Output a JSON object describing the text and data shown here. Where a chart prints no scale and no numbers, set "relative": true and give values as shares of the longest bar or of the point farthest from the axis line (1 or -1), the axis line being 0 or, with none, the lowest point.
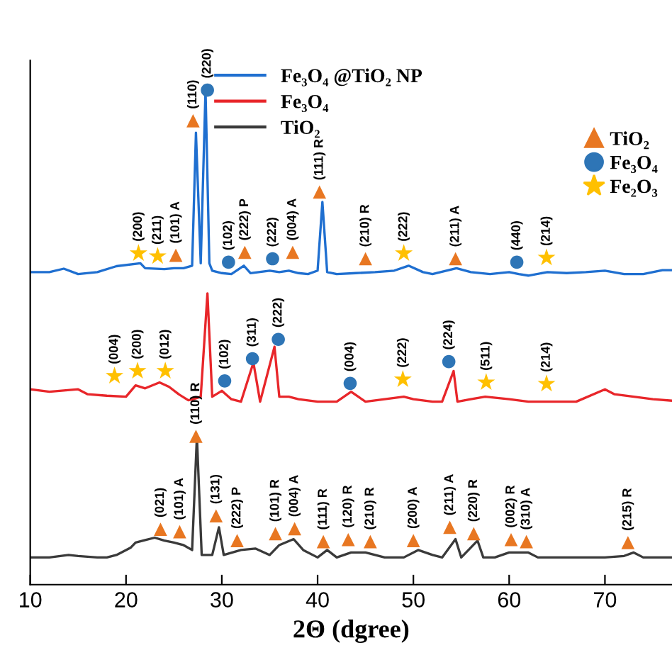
{
  "chart_data": {
    "type": "line",
    "relative": true,
    "xlabel": "2Θ (dgree)",
    "xlim": [
      10,
      77
    ],
    "xticks": [
      10,
      20,
      30,
      40,
      50,
      60,
      70
    ],
    "grid": false,
    "legend": "top",
    "tick_labels": "x",
    "series": [
      {
        "name": "Fe₃O₄ @TiO₂ NP",
        "color": "#1f6fd0",
        "x": [
          10,
          12,
          13.5,
          15,
          17,
          19,
          21.5,
          22,
          24,
          25,
          26,
          26.9,
          27.3,
          27.8,
          28.3,
          28.7,
          29,
          30,
          31,
          32.3,
          33,
          35,
          36,
          37,
          38,
          39,
          40,
          40.5,
          41,
          42,
          44,
          46,
          48,
          49.5,
          51,
          52,
          54.5,
          56,
          58,
          60,
          61,
          62,
          64,
          66,
          68,
          70,
          72,
          74,
          76,
          77
        ],
        "values": [
          0.632,
          0.632,
          0.639,
          0.628,
          0.632,
          0.644,
          0.65,
          0.64,
          0.638,
          0.64,
          0.64,
          0.645,
          0.914,
          0.65,
          1.0,
          0.65,
          0.635,
          0.63,
          0.628,
          0.645,
          0.63,
          0.635,
          0.632,
          0.635,
          0.63,
          0.628,
          0.635,
          0.774,
          0.632,
          0.628,
          0.63,
          0.632,
          0.635,
          0.645,
          0.632,
          0.628,
          0.64,
          0.632,
          0.628,
          0.632,
          0.628,
          0.625,
          0.632,
          0.63,
          0.632,
          0.635,
          0.628,
          0.628,
          0.636,
          0.636
        ]
      },
      {
        "name": "Fe₃O₄",
        "color": "#e8262a",
        "x": [
          10,
          12,
          15,
          16,
          18,
          20,
          21,
          22,
          23.5,
          24.5,
          25.5,
          26.5,
          27,
          27.8,
          28.5,
          29,
          30,
          31,
          32,
          33.3,
          34,
          35.5,
          36,
          37,
          38,
          40,
          42,
          43.5,
          45,
          47,
          49,
          50,
          52,
          53,
          54.2,
          54.6,
          56,
          57.5,
          60,
          62,
          65,
          67,
          70,
          71,
          73,
          75,
          77
        ],
        "values": [
          0.395,
          0.39,
          0.395,
          0.385,
          0.382,
          0.38,
          0.403,
          0.397,
          0.409,
          0.4,
          0.385,
          0.373,
          0.375,
          0.38,
          0.589,
          0.38,
          0.392,
          0.375,
          0.37,
          0.449,
          0.37,
          0.481,
          0.38,
          0.38,
          0.375,
          0.37,
          0.37,
          0.39,
          0.37,
          0.375,
          0.38,
          0.375,
          0.37,
          0.37,
          0.432,
          0.37,
          0.375,
          0.38,
          0.375,
          0.37,
          0.37,
          0.37,
          0.395,
          0.385,
          0.38,
          0.375,
          0.372
        ]
      },
      {
        "name": "TiO₂",
        "color": "#3a3a3a",
        "x": [
          10,
          12,
          14,
          15,
          17,
          18,
          19,
          20.5,
          21,
          22,
          23,
          24,
          25,
          26,
          26.9,
          27.4,
          27.9,
          29,
          29.7,
          30.2,
          32,
          33.5,
          35,
          36,
          37.5,
          38.5,
          40,
          41,
          42,
          43.5,
          45,
          46,
          47,
          49,
          50.5,
          52,
          53,
          54.4,
          55,
          56.7,
          57.3,
          58.5,
          60,
          62,
          63,
          65,
          70,
          72,
          73,
          74,
          77
        ],
        "values": [
          0.055,
          0.055,
          0.06,
          0.058,
          0.055,
          0.055,
          0.06,
          0.075,
          0.085,
          0.09,
          0.095,
          0.089,
          0.085,
          0.08,
          0.07,
          0.3,
          0.06,
          0.06,
          0.116,
          0.06,
          0.07,
          0.073,
          0.06,
          0.08,
          0.092,
          0.07,
          0.055,
          0.07,
          0.055,
          0.065,
          0.065,
          0.06,
          0.055,
          0.055,
          0.07,
          0.06,
          0.055,
          0.092,
          0.055,
          0.089,
          0.055,
          0.055,
          0.065,
          0.065,
          0.055,
          0.055,
          0.055,
          0.058,
          0.065,
          0.055,
          0.055
        ]
      },
      {
        "name": "TiO₂",
        "type": "scatter",
        "marker": "triangle",
        "color": "#e87722",
        "x": [
          23.6,
          25.6,
          27.3,
          29.4,
          31.6,
          35.6,
          37.6,
          40.6,
          43.2,
          45.5,
          50.0,
          53.8,
          56.3,
          60.2,
          61.8,
          72.4,
          25.2,
          27.0,
          32.4,
          37.4,
          40.2,
          45.0,
          54.4
        ],
        "values": [
          0.112,
          0.107,
          0.3,
          0.139,
          0.089,
          0.103,
          0.113,
          0.087,
          0.091,
          0.087,
          0.089,
          0.116,
          0.103,
          0.091,
          0.087,
          0.085,
          0.666,
          0.938,
          0.672,
          0.672,
          0.794,
          0.659,
          0.659
        ]
      },
      {
        "name": "Fe₃O₄",
        "type": "scatter",
        "marker": "circle",
        "color": "#2e75b6",
        "x": [
          30.3,
          33.2,
          35.9,
          43.4,
          53.7,
          28.5,
          30.7,
          35.3,
          60.8
        ],
        "values": [
          0.412,
          0.457,
          0.496,
          0.407,
          0.451,
          1.0,
          0.652,
          0.659,
          0.652
        ]
      },
      {
        "name": "Fe₂O₃",
        "type": "scatter",
        "marker": "star",
        "color": "#ffc000",
        "x": [
          18.8,
          21.2,
          24.1,
          48.9,
          57.6,
          63.9,
          21.3,
          23.3,
          49.0,
          63.9
        ],
        "values": [
          0.422,
          0.432,
          0.432,
          0.415,
          0.409,
          0.406,
          0.67,
          0.664,
          0.67,
          0.661
        ]
      }
    ],
    "annotations": [
      {
        "text": "(021)",
        "x": 23.6,
        "y": 0.112
      },
      {
        "text": "(101) A",
        "x": 25.6,
        "y": 0.107
      },
      {
        "text": "(110) R",
        "x": 27.3,
        "y": 0.3
      },
      {
        "text": "(131)",
        "x": 29.4,
        "y": 0.139
      },
      {
        "text": "(222) P",
        "x": 31.6,
        "y": 0.089
      },
      {
        "text": "(101) R",
        "x": 35.6,
        "y": 0.103
      },
      {
        "text": "(004) A",
        "x": 37.6,
        "y": 0.113
      },
      {
        "text": "(111) R",
        "x": 40.6,
        "y": 0.087
      },
      {
        "text": "(120) R",
        "x": 43.2,
        "y": 0.091
      },
      {
        "text": "(210) R",
        "x": 45.5,
        "y": 0.087
      },
      {
        "text": "(200) A",
        "x": 50.0,
        "y": 0.089
      },
      {
        "text": "(211) A",
        "x": 53.8,
        "y": 0.116
      },
      {
        "text": "(220) R",
        "x": 56.3,
        "y": 0.103
      },
      {
        "text": "(002) R",
        "x": 60.2,
        "y": 0.091
      },
      {
        "text": "(310) A",
        "x": 61.8,
        "y": 0.087
      },
      {
        "text": "(215) R",
        "x": 72.4,
        "y": 0.085
      },
      {
        "text": "(004)",
        "x": 18.8,
        "y": 0.422
      },
      {
        "text": "(200)",
        "x": 21.2,
        "y": 0.432
      },
      {
        "text": "(012)",
        "x": 24.1,
        "y": 0.432
      },
      {
        "text": "(102)",
        "x": 30.3,
        "y": 0.412
      },
      {
        "text": "(311)",
        "x": 33.2,
        "y": 0.457
      },
      {
        "text": "(222)",
        "x": 35.9,
        "y": 0.496
      },
      {
        "text": "(004)",
        "x": 43.4,
        "y": 0.407
      },
      {
        "text": "(222)",
        "x": 48.9,
        "y": 0.415
      },
      {
        "text": "(224)",
        "x": 53.7,
        "y": 0.451
      },
      {
        "text": "(511)",
        "x": 57.6,
        "y": 0.409
      },
      {
        "text": "(214)",
        "x": 63.9,
        "y": 0.406
      },
      {
        "text": "(200)",
        "x": 21.3,
        "y": 0.67
      },
      {
        "text": "(211)",
        "x": 23.3,
        "y": 0.664
      },
      {
        "text": "(101) A",
        "x": 25.2,
        "y": 0.666
      },
      {
        "text": "(110)",
        "x": 27.0,
        "y": 0.938
      },
      {
        "text": "(220)",
        "x": 28.5,
        "y": 1.0
      },
      {
        "text": "(102)",
        "x": 30.7,
        "y": 0.652
      },
      {
        "text": "(222) P",
        "x": 32.4,
        "y": 0.672
      },
      {
        "text": "(222)",
        "x": 35.3,
        "y": 0.659
      },
      {
        "text": "(004) A",
        "x": 37.4,
        "y": 0.672
      },
      {
        "text": "(111) R",
        "x": 40.2,
        "y": 0.794
      },
      {
        "text": "(210) R",
        "x": 45.0,
        "y": 0.659
      },
      {
        "text": "(222)",
        "x": 49.0,
        "y": 0.67
      },
      {
        "text": "(211) A",
        "x": 54.4,
        "y": 0.659
      },
      {
        "text": "(440)",
        "x": 60.8,
        "y": 0.652
      },
      {
        "text": "(214)",
        "x": 63.9,
        "y": 0.661
      }
    ]
  }
}
